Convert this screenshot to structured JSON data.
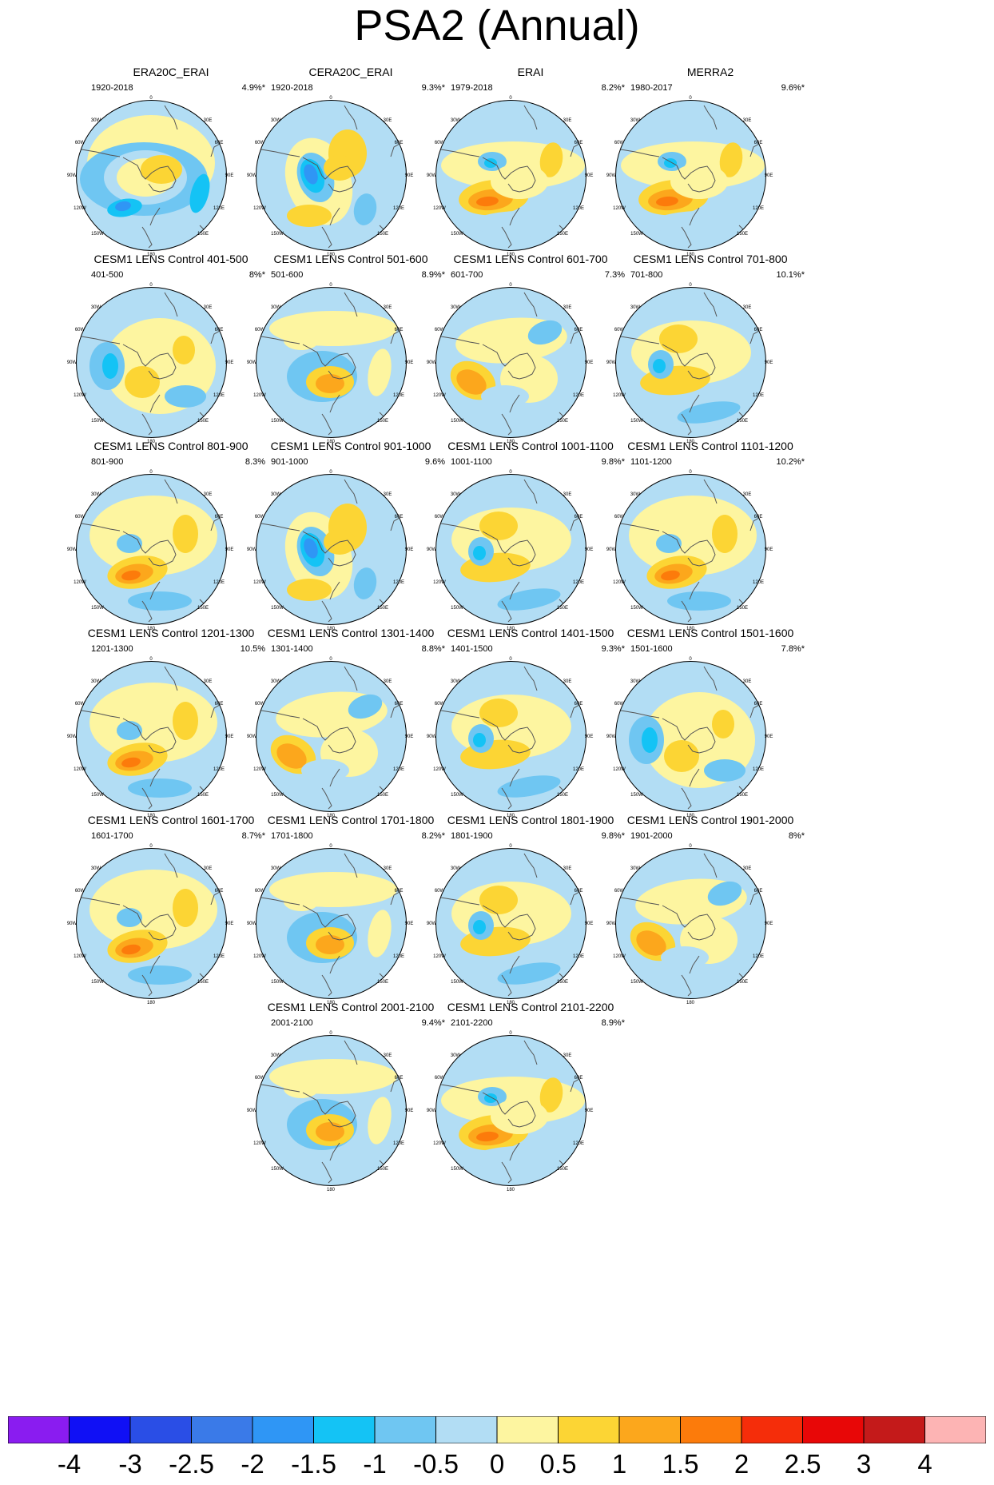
{
  "title": "PSA2 (Annual)",
  "panels": [
    {
      "title": "ERA20C_ERAI",
      "period": "1920-2018",
      "variance": "4.9%*",
      "pattern": 0
    },
    {
      "title": "CERA20C_ERAI",
      "period": "1920-2018",
      "variance": "9.3%*",
      "pattern": 1
    },
    {
      "title": "ERAI",
      "period": "1979-2018",
      "variance": "8.2%*",
      "pattern": 2
    },
    {
      "title": "MERRA2",
      "period": "1980-2017",
      "variance": "9.6%*",
      "pattern": 2
    },
    {
      "title": "CESM1 LENS Control 401-500",
      "period": "401-500",
      "variance": "8%*",
      "pattern": 3
    },
    {
      "title": "CESM1 LENS Control 501-600",
      "period": "501-600",
      "variance": "8.9%*",
      "pattern": 4
    },
    {
      "title": "CESM1 LENS Control 601-700",
      "period": "601-700",
      "variance": "7.3%",
      "pattern": 5
    },
    {
      "title": "CESM1 LENS Control 701-800",
      "period": "701-800",
      "variance": "10.1%*",
      "pattern": 6
    },
    {
      "title": "CESM1 LENS Control 801-900",
      "period": "801-900",
      "variance": "8.3%",
      "pattern": 7
    },
    {
      "title": "CESM1 LENS Control 901-1000",
      "period": "901-1000",
      "variance": "9.6%",
      "pattern": 1
    },
    {
      "title": "CESM1 LENS Control 1001-1100",
      "period": "1001-1100",
      "variance": "9.8%*",
      "pattern": 6
    },
    {
      "title": "CESM1 LENS Control 1101-1200",
      "period": "1101-1200",
      "variance": "10.2%*",
      "pattern": 7
    },
    {
      "title": "CESM1 LENS Control 1201-1300",
      "period": "1201-1300",
      "variance": "10.5%",
      "pattern": 7
    },
    {
      "title": "CESM1 LENS Control 1301-1400",
      "period": "1301-1400",
      "variance": "8.8%*",
      "pattern": 5
    },
    {
      "title": "CESM1 LENS Control 1401-1500",
      "period": "1401-1500",
      "variance": "9.3%*",
      "pattern": 6
    },
    {
      "title": "CESM1 LENS Control 1501-1600",
      "period": "1501-1600",
      "variance": "7.8%*",
      "pattern": 3
    },
    {
      "title": "CESM1 LENS Control 1601-1700",
      "period": "1601-1700",
      "variance": "8.7%*",
      "pattern": 7
    },
    {
      "title": "CESM1 LENS Control 1701-1800",
      "period": "1701-1800",
      "variance": "8.2%*",
      "pattern": 4
    },
    {
      "title": "CESM1 LENS Control 1801-1900",
      "period": "1801-1900",
      "variance": "9.8%*",
      "pattern": 6
    },
    {
      "title": "CESM1 LENS Control 1901-2000",
      "period": "1901-2000",
      "variance": "8%*",
      "pattern": 5
    },
    {
      "title": "CESM1 LENS Control 2001-2100",
      "period": "2001-2100",
      "variance": "9.4%*",
      "pattern": 4
    },
    {
      "title": "CESM1 LENS Control 2101-2200",
      "period": "2101-2200",
      "variance": "8.9%*",
      "pattern": 2
    }
  ],
  "longitude_labels": [
    "0",
    "30E",
    "60E",
    "90E",
    "120E",
    "150E",
    "180",
    "150W",
    "120W",
    "90W",
    "60W",
    "30W"
  ],
  "colorbar": {
    "labels": [
      "-4",
      "-3",
      "-2.5",
      "-2",
      "-1.5",
      "-1",
      "-0.5",
      "0",
      "0.5",
      "1",
      "1.5",
      "2",
      "2.5",
      "3",
      "4"
    ],
    "colors": [
      "#8a1cf0",
      "#1010f5",
      "#2a4ee6",
      "#3a7ae8",
      "#2f96f5",
      "#14c3f5",
      "#6fc6f2",
      "#b2ddf4",
      "#fdf5a0",
      "#fcd534",
      "#fca71c",
      "#fc7b0b",
      "#f52d0a",
      "#e80707",
      "#c41a1a",
      "#fdb4b4"
    ]
  }
}
